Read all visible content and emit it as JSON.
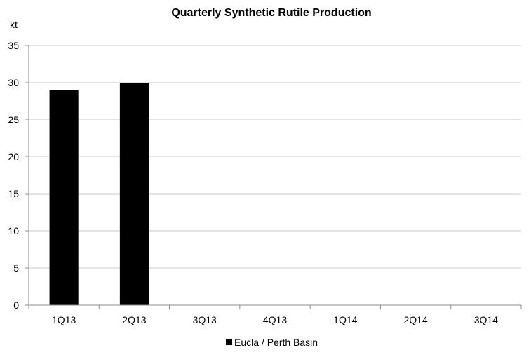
{
  "chart_data": {
    "type": "bar",
    "title": "Quarterly Synthetic Rutile Production",
    "ylabel": "kt",
    "xlabel": "",
    "categories": [
      "1Q13",
      "2Q13",
      "3Q13",
      "4Q13",
      "1Q14",
      "2Q14",
      "3Q14"
    ],
    "series": [
      {
        "name": "Eucla / Perth Basin",
        "values": [
          29,
          30,
          null,
          null,
          null,
          null,
          null
        ],
        "color": "#000000"
      }
    ],
    "ylim": [
      0,
      35
    ],
    "yticks": [
      0,
      5,
      10,
      15,
      20,
      25,
      30,
      35
    ],
    "grid": true,
    "legend": "bottom-center"
  }
}
